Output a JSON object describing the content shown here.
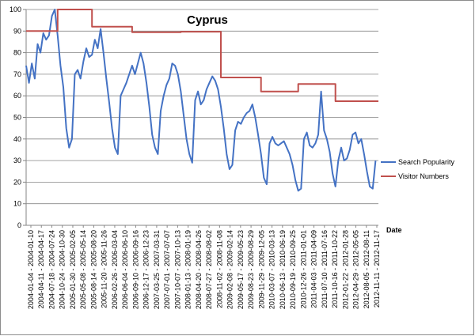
{
  "chart_data": {
    "type": "line",
    "title": "Cyprus",
    "xlabel": "Date",
    "ylabel": "",
    "ylim": [
      0,
      100
    ],
    "yticks": [
      0,
      10,
      20,
      30,
      40,
      50,
      60,
      70,
      80,
      90,
      100
    ],
    "grid": "horizontal",
    "legend": "right",
    "x_tick_labels": [
      "2004-01-04 - 2004-01-10",
      "2004-04-11 - 2004-04-17",
      "2004-07-18 - 2004-07-24",
      "2004-10-24 - 2004-10-30",
      "2005-01-30 - 2005-02-05",
      "2005-05-08 - 2005-05-14",
      "2005-08-14 - 2005-08-20",
      "2005-11-20 - 2005-11-26",
      "2006-02-26 - 2006-03-04",
      "2006-06-04 - 2006-06-10",
      "2006-09-10 - 2006-09-16",
      "2006-12-17 - 2006-12-23",
      "2007-03-25 - 2007-03-31",
      "2007-07-01 - 2007-07-07",
      "2007-10-07 - 2007-10-13",
      "2008-01-13 - 2008-01-19",
      "2008-04-20 - 2008-04-26",
      "2008-07-27 - 2008-08-02",
      "2008-11-02 - 2008-11-08",
      "2009-02-08 - 2009-02-14",
      "2009-05-17 - 2009-05-23",
      "2009-08-23 - 2009-08-29",
      "2009-11-29 - 2009-12-05",
      "2010-03-07 - 2010-03-13",
      "2010-06-13 - 2010-06-19",
      "2010-09-19 - 2010-09-25",
      "2010-12-26 - 2011-01-01",
      "2011-04-03 - 2011-04-09",
      "2011-07-10 - 2011-07-16",
      "2011-10-16 - 2011-10-22",
      "2012-01-22 - 2012-01-28",
      "2012-04-29 - 2012-05-05",
      "2012-08-05 - 2012-08-11",
      "2012-11-11 - 2012-11-17"
    ],
    "series": [
      {
        "name": "Search Popularity",
        "color": "#4472C4",
        "points": [
          [
            0,
            74
          ],
          [
            1,
            66
          ],
          [
            2,
            75
          ],
          [
            3,
            68
          ],
          [
            4,
            84
          ],
          [
            5,
            80
          ],
          [
            6,
            89
          ],
          [
            7,
            86
          ],
          [
            8,
            88
          ],
          [
            9,
            97
          ],
          [
            10,
            100
          ],
          [
            11,
            88
          ],
          [
            12,
            74
          ],
          [
            13,
            64
          ],
          [
            14,
            45
          ],
          [
            15,
            36
          ],
          [
            16,
            40
          ],
          [
            17,
            70
          ],
          [
            18,
            72
          ],
          [
            19,
            68
          ],
          [
            20,
            76
          ],
          [
            21,
            82
          ],
          [
            22,
            78
          ],
          [
            23,
            79
          ],
          [
            24,
            86
          ],
          [
            25,
            82
          ],
          [
            26,
            91
          ],
          [
            27,
            80
          ],
          [
            28,
            68
          ],
          [
            29,
            57
          ],
          [
            30,
            45
          ],
          [
            31,
            36
          ],
          [
            32,
            33
          ],
          [
            33,
            60
          ],
          [
            34,
            63
          ],
          [
            35,
            66
          ],
          [
            36,
            70
          ],
          [
            37,
            74
          ],
          [
            38,
            70
          ],
          [
            39,
            75
          ],
          [
            40,
            80
          ],
          [
            41,
            75
          ],
          [
            42,
            66
          ],
          [
            43,
            55
          ],
          [
            44,
            42
          ],
          [
            45,
            36
          ],
          [
            46,
            33
          ],
          [
            47,
            53
          ],
          [
            48,
            60
          ],
          [
            49,
            65
          ],
          [
            50,
            68
          ],
          [
            51,
            75
          ],
          [
            52,
            74
          ],
          [
            53,
            70
          ],
          [
            54,
            62
          ],
          [
            55,
            51
          ],
          [
            56,
            40
          ],
          [
            57,
            33
          ],
          [
            58,
            29
          ],
          [
            59,
            58
          ],
          [
            60,
            62
          ],
          [
            61,
            56
          ],
          [
            62,
            58
          ],
          [
            63,
            63
          ],
          [
            64,
            66
          ],
          [
            65,
            69
          ],
          [
            66,
            67
          ],
          [
            67,
            63
          ],
          [
            68,
            55
          ],
          [
            69,
            45
          ],
          [
            70,
            33
          ],
          [
            71,
            26
          ],
          [
            72,
            28
          ],
          [
            73,
            44
          ],
          [
            74,
            48
          ],
          [
            75,
            47
          ],
          [
            76,
            50
          ],
          [
            77,
            52
          ],
          [
            78,
            53
          ],
          [
            79,
            56
          ],
          [
            80,
            50
          ],
          [
            81,
            42
          ],
          [
            82,
            33
          ],
          [
            83,
            22
          ],
          [
            84,
            19
          ],
          [
            85,
            38
          ],
          [
            86,
            41
          ],
          [
            87,
            38
          ],
          [
            88,
            37
          ],
          [
            89,
            38
          ],
          [
            90,
            39
          ],
          [
            91,
            36
          ],
          [
            92,
            33
          ],
          [
            93,
            28
          ],
          [
            94,
            21
          ],
          [
            95,
            16
          ],
          [
            96,
            17
          ],
          [
            97,
            40
          ],
          [
            98,
            43
          ],
          [
            99,
            37
          ],
          [
            100,
            36
          ],
          [
            101,
            38
          ],
          [
            102,
            42
          ],
          [
            103,
            62
          ],
          [
            104,
            44
          ],
          [
            105,
            40
          ],
          [
            106,
            34
          ],
          [
            107,
            24
          ],
          [
            108,
            18
          ],
          [
            109,
            30
          ],
          [
            110,
            36
          ],
          [
            111,
            30
          ],
          [
            112,
            31
          ],
          [
            113,
            35
          ],
          [
            114,
            42
          ],
          [
            115,
            43
          ],
          [
            116,
            38
          ],
          [
            117,
            40
          ],
          [
            118,
            33
          ],
          [
            119,
            25
          ],
          [
            120,
            18
          ],
          [
            121,
            17
          ],
          [
            122,
            30
          ]
        ]
      },
      {
        "name": "Visitor Numbers",
        "color": "#C0504D",
        "points": [
          [
            0,
            90
          ],
          [
            11,
            90
          ],
          [
            11,
            100
          ],
          [
            23,
            100
          ],
          [
            23,
            92
          ],
          [
            37,
            92
          ],
          [
            37,
            89.5
          ],
          [
            54,
            89.5
          ],
          [
            54,
            89.7
          ],
          [
            68,
            89.7
          ],
          [
            68,
            68.5
          ],
          [
            82,
            68.5
          ],
          [
            82,
            62
          ],
          [
            95,
            62
          ],
          [
            95,
            65.5
          ],
          [
            108,
            65.5
          ],
          [
            108,
            57.5
          ],
          [
            123,
            57.5
          ]
        ]
      }
    ]
  }
}
